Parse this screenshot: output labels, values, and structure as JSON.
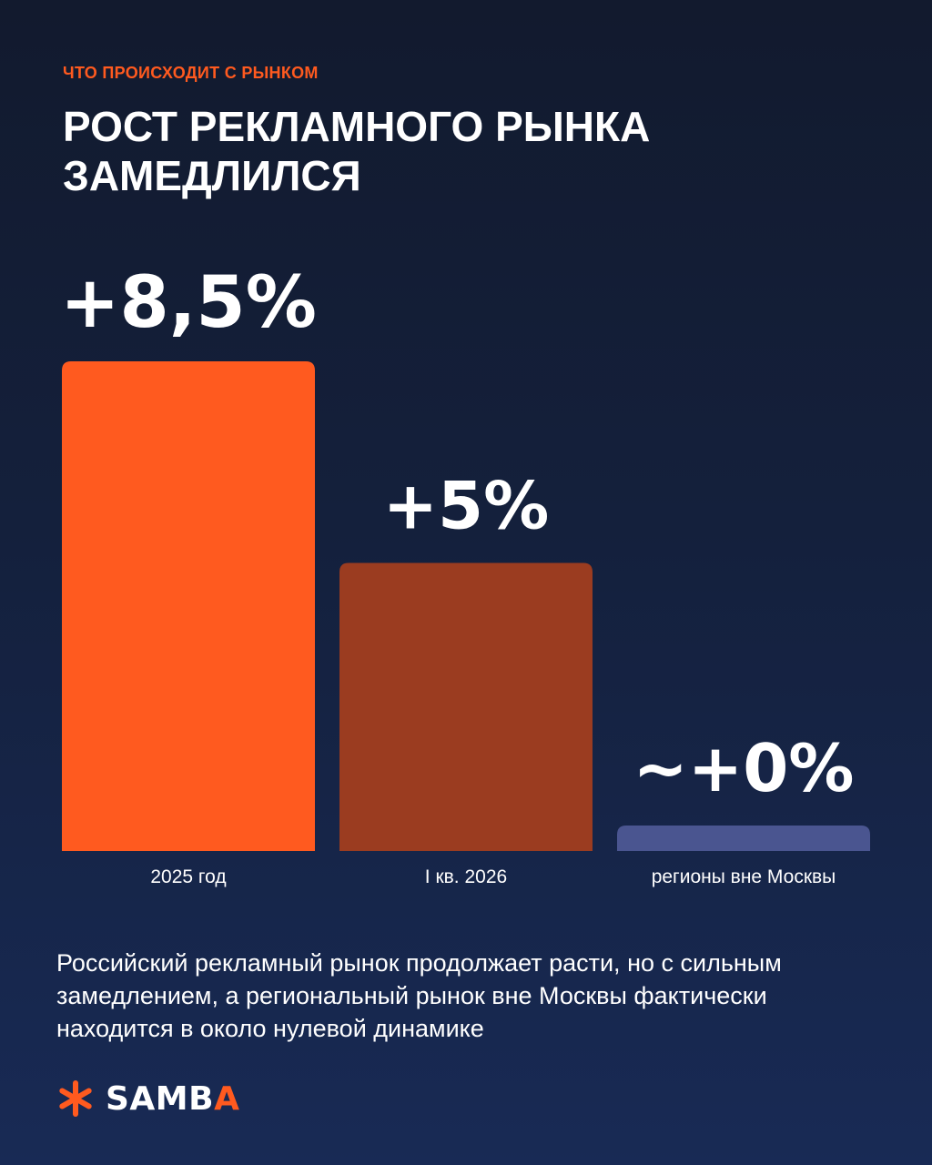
{
  "eyebrow": "ЧТО ПРОИСХОДИТ С РЫНКОМ",
  "title": "РОСТ РЕКЛАМНОГО РЫНКА ЗАМЕДЛИЛСЯ",
  "description": "Российский рекламный рынок продолжает расти, но с сильным замедлением, а региональный рынок вне Москвы фактически находится в около нулевой динамике",
  "logo": {
    "name_main": "SAMB",
    "name_accent": "A",
    "icon": "asterisk-icon"
  },
  "colors": {
    "accent": "#ff5a1f",
    "bar_2025": "#ff5a1f",
    "bar_q1_2026": "#9b3c20",
    "bar_regions": "#4a5590",
    "background_top": "#121a2e",
    "background_bottom": "#182a55"
  },
  "chart_data": {
    "type": "bar",
    "categories": [
      "2025 год",
      "I кв. 2026",
      "регионы вне Москвы"
    ],
    "values": [
      8.5,
      5,
      0
    ],
    "value_labels": [
      "+8,5%",
      "+5%",
      "~+0%"
    ],
    "bar_colors": [
      "#ff5a1f",
      "#9b3c20",
      "#4a5590"
    ],
    "unit": "%",
    "title": "",
    "xlabel": "",
    "ylabel": "",
    "grid": false,
    "legend": "none"
  }
}
